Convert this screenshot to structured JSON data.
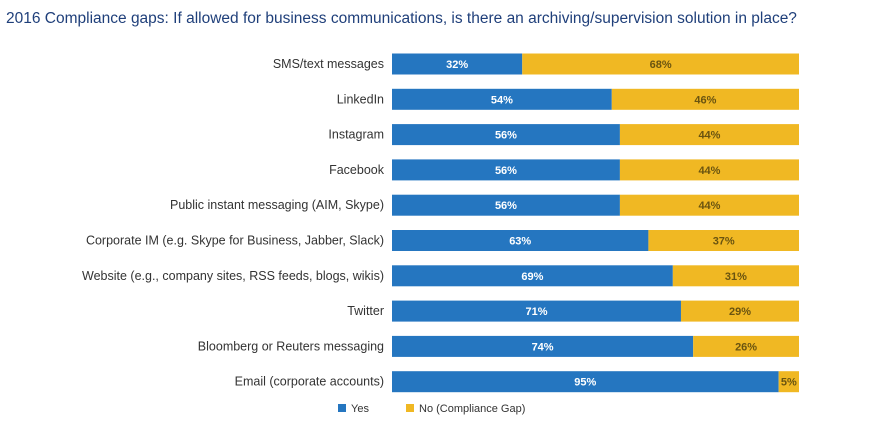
{
  "title": "2016 Compliance gaps: If allowed for business communications, is there an archiving/supervision solution in place?",
  "colors": {
    "yes": "#2576c0",
    "no": "#f0b823"
  },
  "chart_data": {
    "type": "bar",
    "orientation": "horizontal",
    "stacked": true,
    "title": "2016 Compliance gaps: If allowed for business communications, is there an archiving/supervision solution in place?",
    "xlim": [
      0,
      100
    ],
    "grid": false,
    "legend_position": "bottom",
    "categories": [
      "SMS/text messages",
      "LinkedIn",
      "Instagram",
      "Facebook",
      "Public instant messaging (AIM, Skype)",
      "Corporate IM (e.g. Skype for Business, Jabber, Slack)",
      "Website  (e.g., company sites, RSS feeds, blogs, wikis)",
      "Twitter",
      "Bloomberg or Reuters messaging",
      "Email (corporate accounts)"
    ],
    "series": [
      {
        "name": "Yes",
        "values": [
          32,
          54,
          56,
          56,
          56,
          63,
          69,
          71,
          74,
          95
        ],
        "labels": [
          "32%",
          "54%",
          "56%",
          "56%",
          "56%",
          "63%",
          "69%",
          "71%",
          "74%",
          "95%"
        ]
      },
      {
        "name": "No (Compliance Gap)",
        "values": [
          68,
          46,
          44,
          44,
          44,
          37,
          31,
          29,
          26,
          5
        ],
        "labels": [
          "68%",
          "46%",
          "44%",
          "44%",
          "44%",
          "37%",
          "31%",
          "29%",
          "26%",
          "5%"
        ]
      }
    ]
  }
}
